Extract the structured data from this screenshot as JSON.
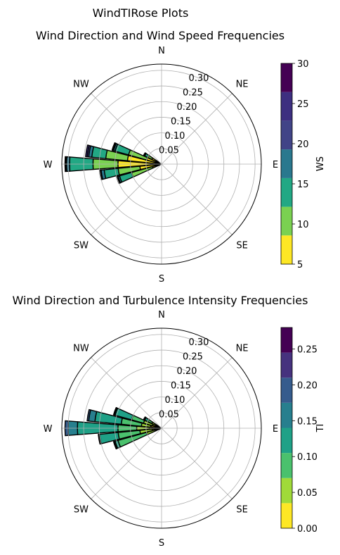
{
  "suptitle": "WindTIRose Plots",
  "chart_data": [
    {
      "type": "polar-stacked-bar",
      "title": "Wind Direction and Wind Speed Frequencies",
      "direction_labels": [
        "N",
        "NE",
        "E",
        "SE",
        "S",
        "SW",
        "W",
        "NW"
      ],
      "radial_ticks": [
        0.05,
        0.1,
        0.15,
        0.2,
        0.25,
        0.3
      ],
      "radial_tick_labels": [
        "0.05",
        "0.10",
        "0.15",
        "0.20",
        "0.25",
        "0.30"
      ],
      "rmax": 0.32,
      "colorbar": {
        "label": "WS",
        "min": 5,
        "max": 30,
        "ticks": [
          5,
          10,
          15,
          20,
          25,
          30
        ],
        "bins": [
          [
            5,
            8.57
          ],
          [
            8.57,
            12.14
          ],
          [
            12.14,
            15.71
          ],
          [
            15.71,
            19.29
          ],
          [
            19.29,
            22.86
          ],
          [
            22.86,
            26.43
          ],
          [
            26.43,
            30
          ]
        ],
        "colors": [
          "#fde725",
          "#7ad151",
          "#22a884",
          "#2a788e",
          "#414487",
          "#3d2f80",
          "#440154"
        ]
      },
      "sectors": [
        {
          "direction_deg": 250,
          "cumulative": [
            0.03,
            0.1,
            0.14,
            0.145,
            0.148,
            0.15
          ]
        },
        {
          "direction_deg": 260,
          "cumulative": [
            0.07,
            0.14,
            0.185,
            0.195,
            0.198,
            0.2
          ]
        },
        {
          "direction_deg": 270,
          "cumulative": [
            0.14,
            0.22,
            0.295,
            0.305,
            0.308,
            0.31
          ]
        },
        {
          "direction_deg": 280,
          "cumulative": [
            0.11,
            0.18,
            0.225,
            0.235,
            0.24,
            0.245
          ]
        },
        {
          "direction_deg": 290,
          "cumulative": [
            0.05,
            0.11,
            0.155,
            0.16,
            0.162,
            0.165
          ]
        },
        {
          "direction_deg": 300,
          "cumulative": [
            0.035,
            0.05,
            0.06,
            0.062,
            0.063,
            0.064
          ]
        }
      ]
    },
    {
      "type": "polar-stacked-bar",
      "title": "Wind Direction and Turbulence Intensity Frequencies",
      "direction_labels": [
        "N",
        "NE",
        "E",
        "SE",
        "S",
        "SW",
        "W",
        "NW"
      ],
      "radial_ticks": [
        0.05,
        0.1,
        0.15,
        0.2,
        0.25,
        0.3
      ],
      "radial_tick_labels": [
        "0.05",
        "0.10",
        "0.15",
        "0.20",
        "0.25",
        "0.30"
      ],
      "rmax": 0.32,
      "colorbar": {
        "label": "TI",
        "min": 0.0,
        "max": 0.28,
        "ticks": [
          0.0,
          0.05,
          0.1,
          0.15,
          0.2,
          0.25
        ],
        "tick_labels": [
          "0.00",
          "0.05",
          "0.10",
          "0.15",
          "0.20",
          "0.25"
        ],
        "bins": [
          [
            0.0,
            0.035
          ],
          [
            0.035,
            0.07
          ],
          [
            0.07,
            0.105
          ],
          [
            0.105,
            0.14
          ],
          [
            0.14,
            0.175
          ],
          [
            0.175,
            0.21
          ],
          [
            0.21,
            0.245
          ],
          [
            0.245,
            0.28
          ]
        ],
        "colors": [
          "#fde725",
          "#a0da39",
          "#4ac16d",
          "#1fa187",
          "#277f8e",
          "#365c8d",
          "#46327e",
          "#440154"
        ]
      },
      "sectors": [
        {
          "direction_deg": 250,
          "cumulative": [
            0.02,
            0.05,
            0.145,
            0.155,
            0.158,
            0.16
          ]
        },
        {
          "direction_deg": 260,
          "cumulative": [
            0.03,
            0.07,
            0.14,
            0.2,
            0.202,
            0.204
          ]
        },
        {
          "direction_deg": 270,
          "cumulative": [
            0.04,
            0.08,
            0.14,
            0.27,
            0.3,
            0.31
          ]
        },
        {
          "direction_deg": 280,
          "cumulative": [
            0.035,
            0.065,
            0.13,
            0.215,
            0.235,
            0.24
          ]
        },
        {
          "direction_deg": 290,
          "cumulative": [
            0.03,
            0.06,
            0.1,
            0.155,
            0.158,
            0.16
          ]
        },
        {
          "direction_deg": 300,
          "cumulative": [
            0.02,
            0.035,
            0.05,
            0.06,
            0.062,
            0.064
          ]
        }
      ]
    }
  ]
}
